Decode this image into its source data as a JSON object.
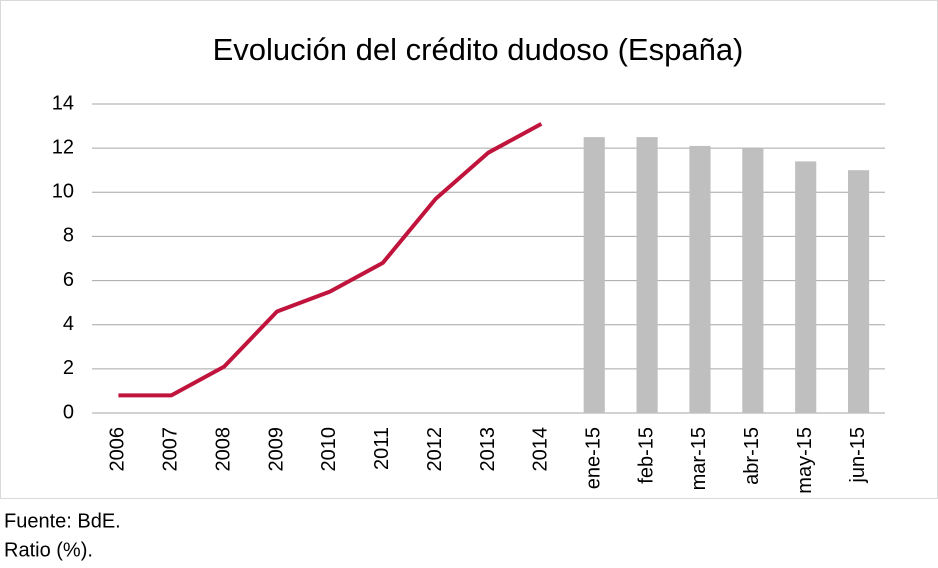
{
  "chart_data": {
    "type": "combo",
    "title": "Evolución del crédito dudoso (España)",
    "categories": [
      "2006",
      "2007",
      "2008",
      "2009",
      "2010",
      "2011",
      "2012",
      "2013",
      "2014",
      "ene-15",
      "feb-15",
      "mar-15",
      "abr-15",
      "may-15",
      "jun-15"
    ],
    "series": [
      {
        "type": "line",
        "color": "#c0143c",
        "values": [
          0.8,
          0.8,
          2.1,
          4.6,
          5.5,
          6.8,
          9.7,
          11.8,
          13.1,
          null,
          null,
          null,
          null,
          null,
          null
        ]
      },
      {
        "type": "bar",
        "color": "#bfbfbf",
        "values": [
          null,
          null,
          null,
          null,
          null,
          null,
          null,
          null,
          null,
          12.5,
          12.5,
          12.1,
          12.0,
          11.4,
          11.0
        ]
      }
    ],
    "ylim": [
      0,
      14
    ],
    "yticks": [
      0,
      2,
      4,
      6,
      8,
      10,
      12,
      14
    ],
    "grid": true,
    "notes": [
      "Fuente: BdE.",
      "Ratio (%)."
    ]
  }
}
